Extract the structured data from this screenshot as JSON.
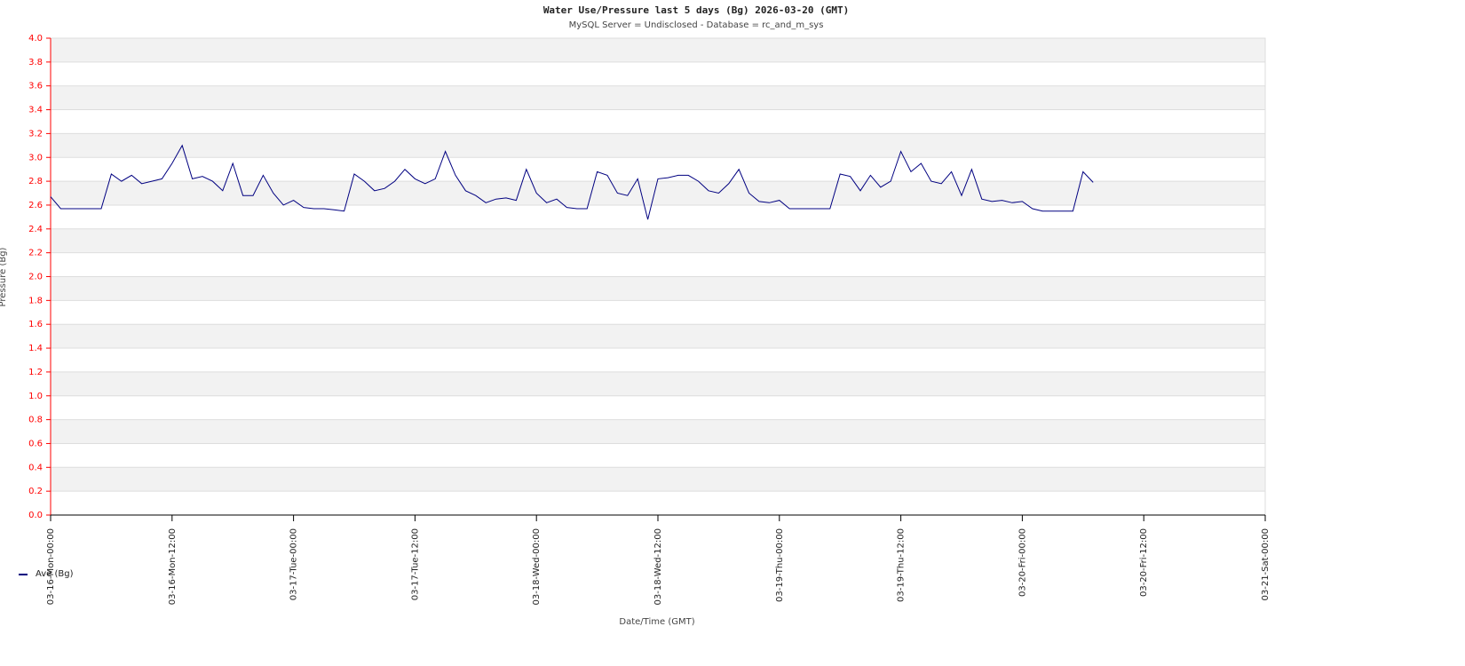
{
  "chart_data": {
    "type": "line",
    "title": "Water Use/Pressure last 5     days (Bg) 2026-03-20 (GMT)",
    "subtitle": "MySQL Server = Undisclosed - Database = rc_and_m_sys",
    "y_label": "Pressure (Bg)",
    "x_label": "Date/Time (GMT)",
    "x": [
      0,
      1,
      2,
      3,
      4,
      5,
      6,
      7,
      8,
      9,
      10,
      11,
      12,
      13,
      14,
      15,
      16,
      17,
      18,
      19,
      20,
      21,
      22,
      23,
      24,
      25,
      26,
      27,
      28,
      29,
      30,
      31,
      32,
      33,
      34,
      35,
      36,
      37,
      38,
      39,
      40,
      41,
      42,
      43,
      44,
      45,
      46,
      47,
      48,
      49,
      50,
      51,
      52,
      53,
      54,
      55,
      56,
      57,
      58,
      59,
      60,
      61,
      62,
      63,
      64,
      65,
      66,
      67,
      68,
      69,
      70,
      71,
      72,
      73,
      74,
      75,
      76,
      77,
      78,
      79,
      80,
      81,
      82,
      83,
      84,
      85,
      86,
      87,
      88,
      89,
      90,
      91,
      92,
      93,
      94,
      95,
      96,
      97,
      98,
      99,
      100,
      101,
      102,
      103
    ],
    "series": [
      {
        "name": "Ave (Bg)",
        "color": "#000080",
        "values": [
          2.67,
          2.57,
          2.57,
          2.57,
          2.57,
          2.57,
          2.86,
          2.8,
          2.85,
          2.78,
          2.8,
          2.82,
          2.95,
          3.1,
          2.82,
          2.84,
          2.8,
          2.72,
          2.95,
          2.68,
          2.68,
          2.85,
          2.7,
          2.6,
          2.64,
          2.58,
          2.57,
          2.57,
          2.56,
          2.55,
          2.86,
          2.8,
          2.72,
          2.74,
          2.8,
          2.9,
          2.82,
          2.78,
          2.82,
          3.05,
          2.85,
          2.72,
          2.68,
          2.62,
          2.65,
          2.66,
          2.64,
          2.9,
          2.7,
          2.62,
          2.65,
          2.58,
          2.57,
          2.57,
          2.88,
          2.85,
          2.7,
          2.68,
          2.82,
          2.48,
          2.82,
          2.83,
          2.85,
          2.85,
          2.8,
          2.72,
          2.7,
          2.78,
          2.9,
          2.7,
          2.63,
          2.62,
          2.64,
          2.57,
          2.57,
          2.57,
          2.57,
          2.57,
          2.86,
          2.84,
          2.72,
          2.85,
          2.75,
          2.8,
          3.05,
          2.88,
          2.95,
          2.8,
          2.78,
          2.88,
          2.68,
          2.9,
          2.65,
          2.63,
          2.64,
          2.62,
          2.63,
          2.57,
          2.55,
          2.55,
          2.55,
          2.55,
          2.88,
          2.79
        ]
      }
    ],
    "xlim": [
      0,
      120
    ],
    "xticks": [
      {
        "value": 0,
        "label": "03-16-Mon-00:00"
      },
      {
        "value": 12,
        "label": "03-16-Mon-12:00"
      },
      {
        "value": 24,
        "label": "03-17-Tue-00:00"
      },
      {
        "value": 36,
        "label": "03-17-Tue-12:00"
      },
      {
        "value": 48,
        "label": "03-18-Wed-00:00"
      },
      {
        "value": 60,
        "label": "03-18-Wed-12:00"
      },
      {
        "value": 72,
        "label": "03-19-Thu-00:00"
      },
      {
        "value": 84,
        "label": "03-19-Thu-12:00"
      },
      {
        "value": 96,
        "label": "03-20-Fri-00:00"
      },
      {
        "value": 108,
        "label": "03-20-Fri-12:00"
      },
      {
        "value": 120,
        "label": "03-21-Sat-00:00"
      }
    ],
    "ylim": [
      0,
      4
    ],
    "yticks": [
      {
        "value": 0,
        "label": "0.0"
      },
      0.2,
      0.4,
      0.6,
      0.8,
      {
        "value": 1,
        "label": "1.0"
      },
      1.2,
      1.4,
      1.6,
      1.8,
      {
        "value": 2,
        "label": "2.0"
      },
      2.2,
      2.4,
      2.6,
      2.8,
      {
        "value": 3,
        "label": "3.0"
      },
      3.2,
      3.4,
      3.6,
      3.8,
      {
        "value": 4,
        "label": "4.0"
      }
    ],
    "grid": true
  }
}
